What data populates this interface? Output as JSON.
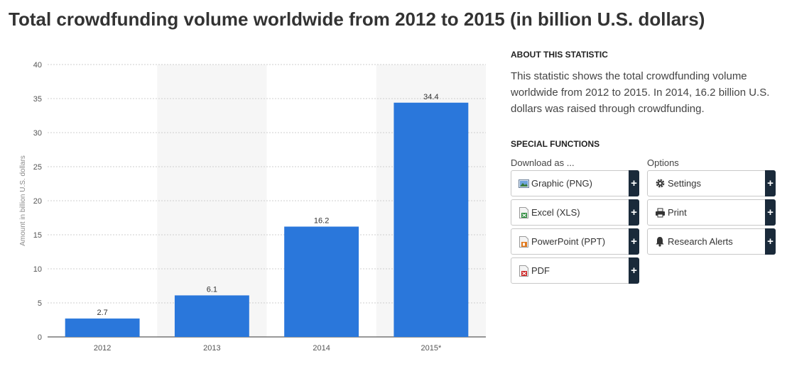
{
  "page": {
    "title": "Total crowdfunding volume worldwide from 2012 to 2015 (in billion U.S. dollars)"
  },
  "about": {
    "heading": "ABOUT THIS STATISTIC",
    "text": "This statistic shows the total crowdfunding volume worldwide from 2012 to 2015. In 2014, 16.2 billion U.S. dollars was raised through crowdfunding."
  },
  "special": {
    "heading": "SPECIAL FUNCTIONS",
    "download_title": "Download as ...",
    "options_title": "Options",
    "download": [
      {
        "label": "Graphic (PNG)",
        "icon": "png-file-icon"
      },
      {
        "label": "Excel (XLS)",
        "icon": "xls-file-icon"
      },
      {
        "label": "PowerPoint (PPT)",
        "icon": "ppt-file-icon"
      },
      {
        "label": "PDF",
        "icon": "pdf-file-icon"
      }
    ],
    "options": [
      {
        "label": "Settings",
        "icon": "gear-icon"
      },
      {
        "label": "Print",
        "icon": "printer-icon"
      },
      {
        "label": "Research Alerts",
        "icon": "bell-icon"
      }
    ],
    "plus_symbol": "+"
  },
  "colors": {
    "bar": "#2a77db",
    "alt_band": "#f6f6f6",
    "grid": "#cfcfcf",
    "expand_button": "#1a2a3a"
  },
  "chart_data": {
    "type": "bar",
    "categories": [
      "2012",
      "2013",
      "2014",
      "2015*"
    ],
    "values": [
      2.7,
      6.1,
      16.2,
      34.4
    ],
    "data_labels": [
      "2.7",
      "6.1",
      "16.2",
      "34.4"
    ],
    "title": "",
    "xlabel": "",
    "ylabel": "Amount in billion U.S. dollars",
    "ylim": [
      0,
      40
    ],
    "yticks": [
      0,
      5,
      10,
      15,
      20,
      25,
      30,
      35,
      40
    ],
    "grid": true
  }
}
